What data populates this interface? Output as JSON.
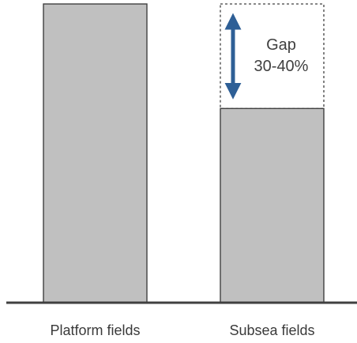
{
  "chart_data": {
    "type": "bar",
    "categories": [
      "Platform fields",
      "Subsea fields"
    ],
    "values": [
      100,
      65
    ],
    "ylim": [
      0,
      100
    ],
    "grid": false,
    "bar_color": "#c0c0c0",
    "bar_stroke": "#404040",
    "baseline_color": "#404040",
    "annotation": {
      "text_line1": "Gap",
      "text_line2": "30-40%",
      "arrow_color": "#2e5f96",
      "box_style": "dashed",
      "applies_to": "Subsea fields",
      "from_value": 65,
      "to_value": 100
    }
  }
}
